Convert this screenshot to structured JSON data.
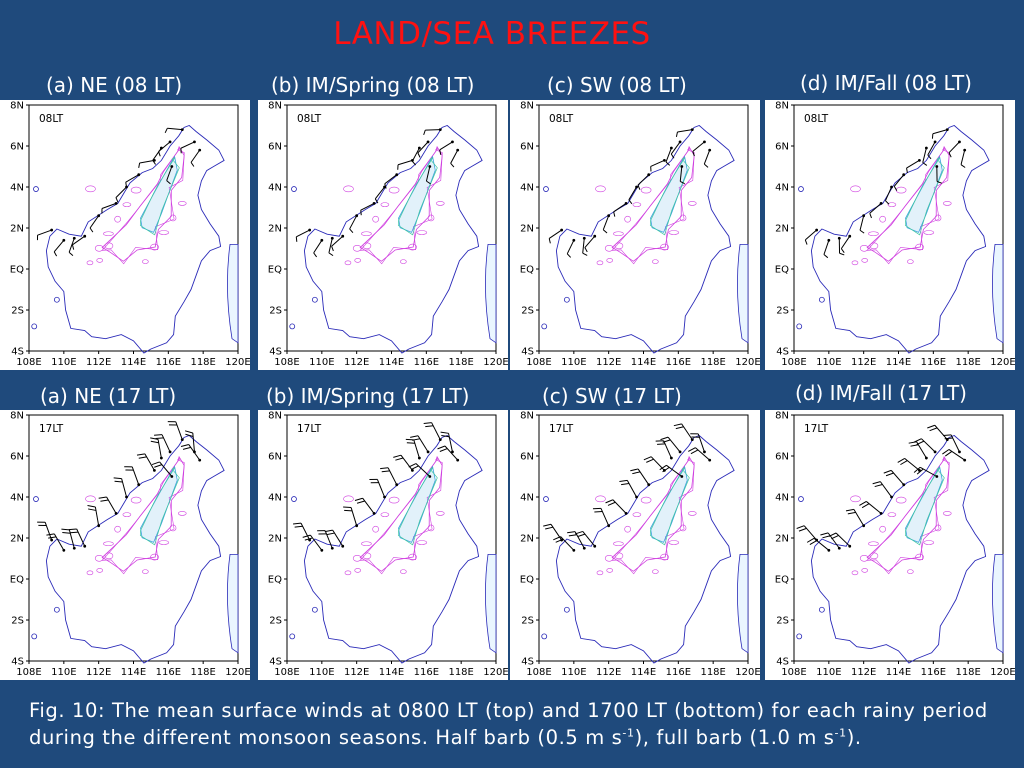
{
  "slide": {
    "title": "LAND/SEA BREEZES",
    "title_color": "#ff1111",
    "background_color": "#1f4a7c"
  },
  "axis_ticks": {
    "y": [
      "8N",
      "6N",
      "4N",
      "2N",
      "EQ",
      "2S",
      "4S"
    ],
    "x": [
      "108E",
      "110E",
      "112E",
      "114E",
      "116E",
      "118E",
      "120E"
    ]
  },
  "colors": {
    "coastline": "#2a2ab8",
    "contour_outer": "#d040e0",
    "contour_mid": "#3da0e0",
    "contour_inner": "#40c8a0",
    "barb": "#000000"
  },
  "rows": [
    {
      "panels": [
        {
          "label": "(a) NE (08 LT)",
          "time_label": "08LT"
        },
        {
          "label": "(b) IM/Spring (08 LT)",
          "time_label": "08LT"
        },
        {
          "label": "(c) SW (08 LT)",
          "time_label": "08LT"
        },
        {
          "label": "(d) IM/Fall (08 LT)",
          "time_label": "08LT"
        }
      ]
    },
    {
      "panels": [
        {
          "label": "(a) NE (17 LT)",
          "time_label": "17LT"
        },
        {
          "label": "(b) IM/Spring (17 LT)",
          "time_label": "17LT"
        },
        {
          "label": "(c) SW (17 LT)",
          "time_label": "17LT"
        },
        {
          "label": "(d) IM/Fall (17 LT)",
          "time_label": "17LT"
        }
      ]
    }
  ],
  "caption": {
    "main": "Fig. 10: The mean surface winds at 0800 LT (top) and 1700 LT (bottom) for each rainy period during the different monsoon seasons. Half barb (0.5 m s",
    "sup1": "-1",
    "mid": "), full barb (1.0 m s",
    "sup2": "-1",
    "end": ")."
  }
}
